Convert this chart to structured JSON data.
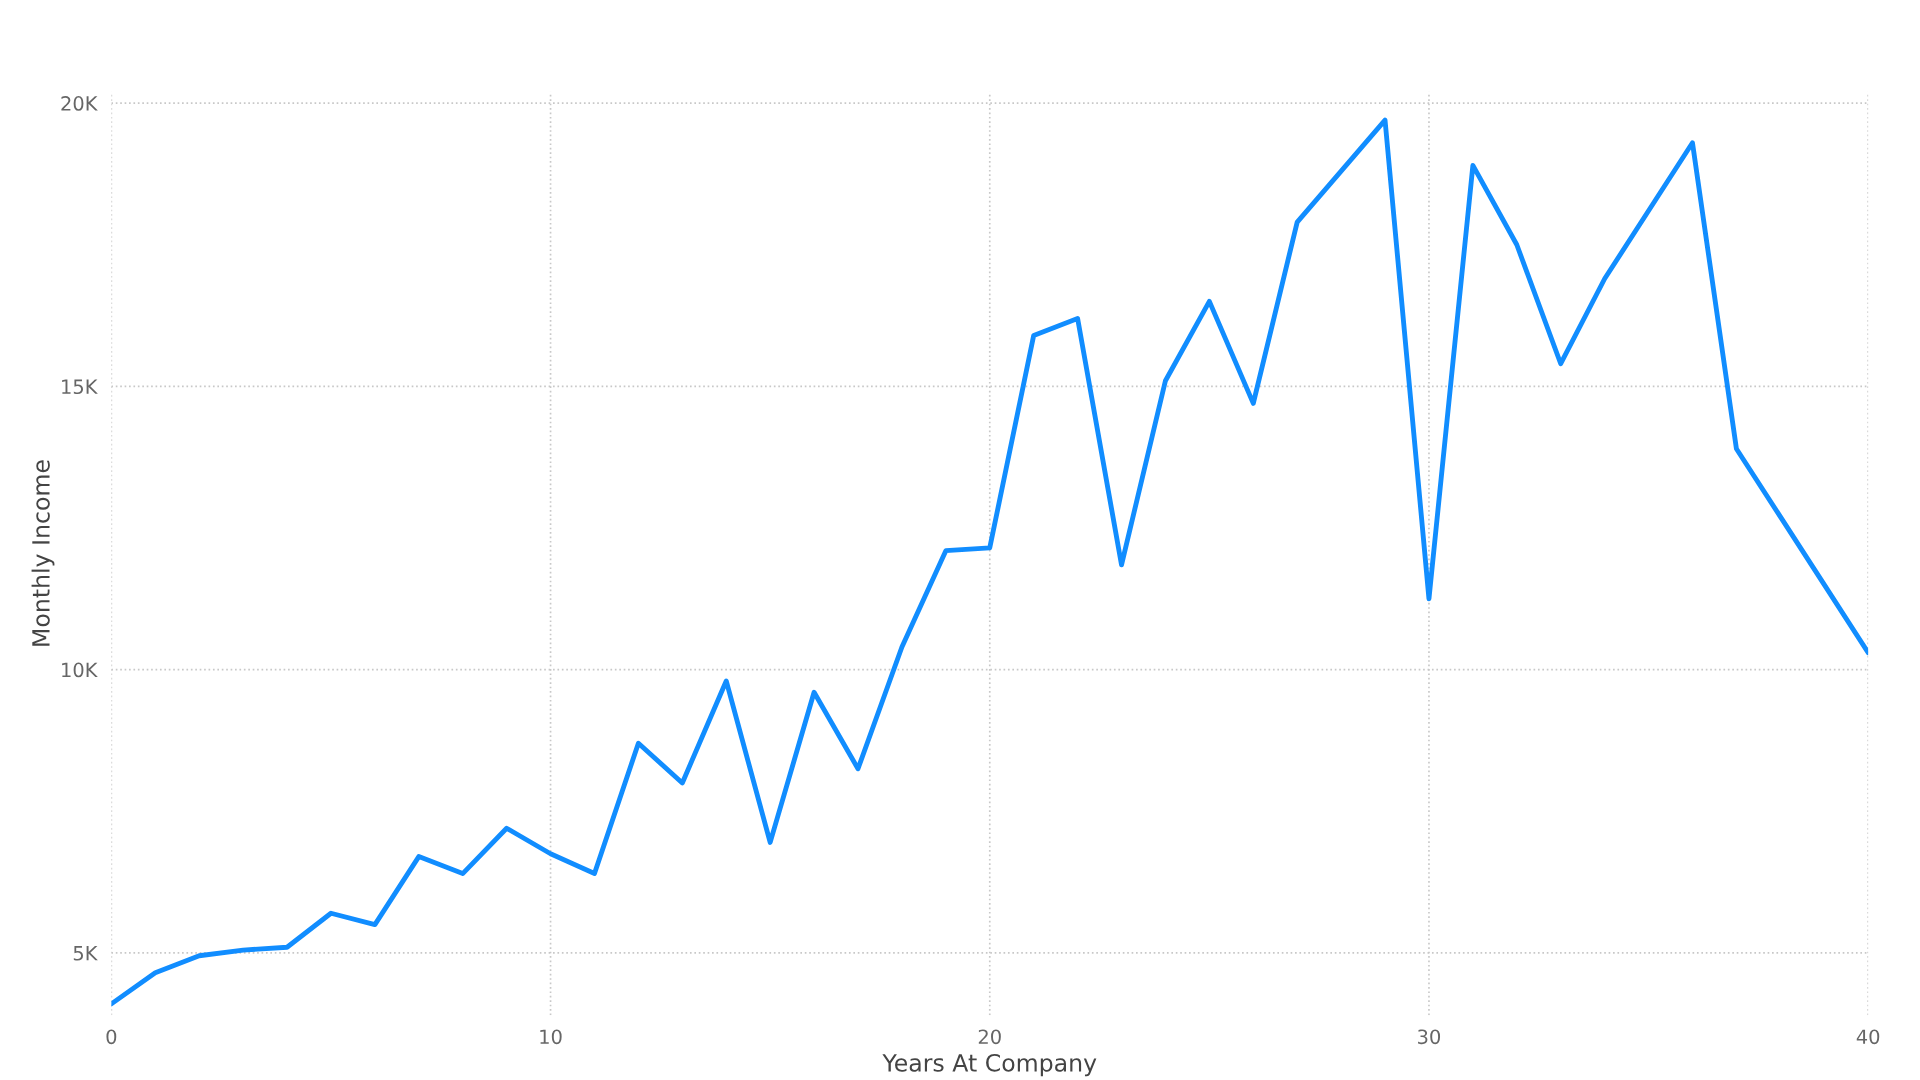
{
  "chart_data": {
    "type": "line",
    "xlabel": "Years At Company",
    "ylabel": "Monthly Income",
    "x": [
      0,
      1,
      2,
      3,
      4,
      5,
      6,
      7,
      8,
      9,
      10,
      11,
      12,
      13,
      14,
      15,
      16,
      17,
      18,
      19,
      20,
      21,
      22,
      23,
      24,
      25,
      26,
      27,
      28,
      29,
      30,
      31,
      32,
      33,
      34,
      35,
      36,
      37,
      38,
      39,
      40
    ],
    "series": [
      {
        "color": "#118dff",
        "values": [
          4100,
          4650,
          4950,
          5050,
          5100,
          5700,
          5500,
          6700,
          6400,
          7200,
          6750,
          6400,
          8700,
          8000,
          9800,
          6950,
          9600,
          8250,
          10400,
          12100,
          12150,
          15900,
          16200,
          11850,
          15100,
          16500,
          14700,
          17900,
          18800,
          19700,
          11250,
          18900,
          17500,
          15400,
          16900,
          18100,
          19300,
          13900,
          12700,
          11500,
          10300
        ]
      }
    ],
    "xlim": [
      0,
      40
    ],
    "ylim": [
      3900,
      20200
    ],
    "xticks": [
      0,
      10,
      20,
      30,
      40
    ],
    "yticks": [
      {
        "value": 5000,
        "label": "5K"
      },
      {
        "value": 10000,
        "label": "10K"
      },
      {
        "value": 15000,
        "label": "15K"
      },
      {
        "value": 20000,
        "label": "20K"
      }
    ],
    "grid": true,
    "marker": "none",
    "line_style": "solid"
  }
}
